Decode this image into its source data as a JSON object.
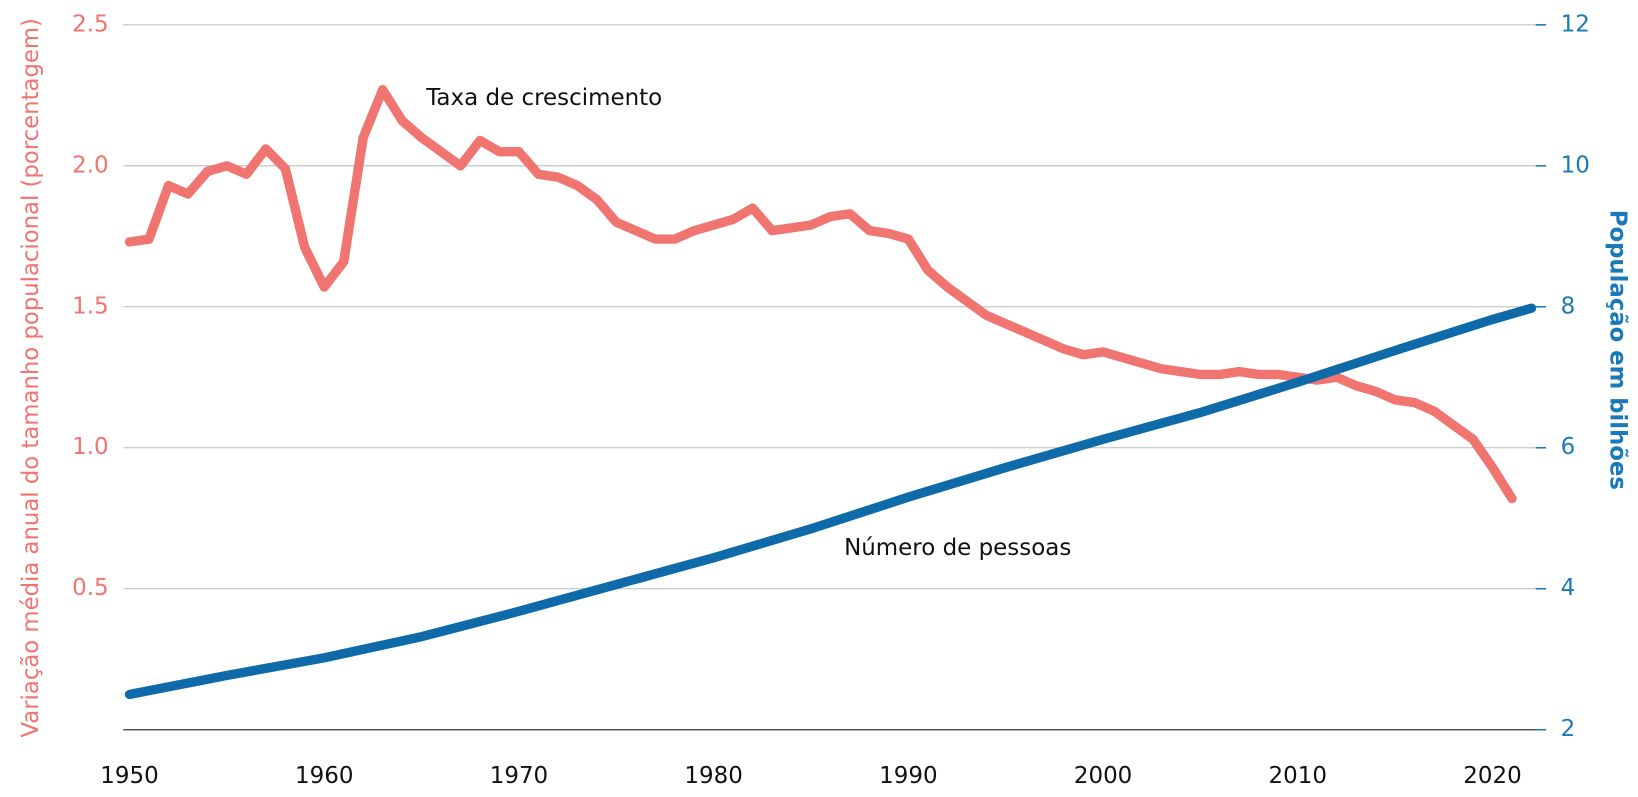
{
  "chart_data": {
    "type": "line",
    "annotations": [
      "Taxa de crescimento",
      "Número de pessoas"
    ],
    "ylabel": "Variação média anual do tamanho populacional (porcentagem)",
    "y2label": "População em bilhões",
    "xlim": [
      1950,
      2022
    ],
    "xticks": [
      1950,
      1960,
      1970,
      1980,
      1990,
      2000,
      2010,
      2020
    ],
    "ylim": [
      0,
      2.5
    ],
    "yticks": [
      0.5,
      {
        "value": 1,
        "label": "1.0"
      },
      1.5,
      {
        "value": 2,
        "label": "2.0"
      },
      2.5
    ],
    "y2lim": [
      2,
      12
    ],
    "y2ticks": [
      2,
      4,
      6,
      8,
      10,
      12
    ],
    "grid": true,
    "series": [
      {
        "color": "#f07470",
        "x": [
          1950,
          1951,
          1952,
          1953,
          1954,
          1955,
          1956,
          1957,
          1958,
          1959,
          1960,
          1961,
          1962,
          1963,
          1964,
          1965,
          1966,
          1967,
          1968,
          1969,
          1970,
          1971,
          1972,
          1973,
          1974,
          1975,
          1976,
          1977,
          1978,
          1979,
          1980,
          1981,
          1982,
          1983,
          1984,
          1985,
          1986,
          1987,
          1988,
          1989,
          1990,
          1991,
          1992,
          1993,
          1994,
          1995,
          1996,
          1997,
          1998,
          1999,
          2000,
          2001,
          2002,
          2003,
          2004,
          2005,
          2006,
          2007,
          2008,
          2009,
          2010,
          2011,
          2012,
          2013,
          2014,
          2015,
          2016,
          2017,
          2018,
          2019,
          2020,
          2021
        ],
        "values": [
          1.73,
          1.74,
          1.93,
          1.9,
          1.98,
          2.0,
          1.97,
          2.06,
          1.99,
          1.71,
          1.57,
          1.66,
          2.1,
          2.27,
          2.16,
          2.1,
          2.05,
          2.0,
          2.09,
          2.05,
          2.05,
          1.97,
          1.96,
          1.93,
          1.88,
          1.8,
          1.77,
          1.74,
          1.74,
          1.77,
          1.79,
          1.81,
          1.85,
          1.77,
          1.78,
          1.79,
          1.82,
          1.83,
          1.77,
          1.76,
          1.74,
          1.63,
          1.57,
          1.52,
          1.47,
          1.44,
          1.41,
          1.38,
          1.35,
          1.33,
          1.34,
          1.32,
          1.3,
          1.28,
          1.27,
          1.26,
          1.26,
          1.27,
          1.26,
          1.26,
          1.25,
          1.24,
          1.25,
          1.22,
          1.2,
          1.17,
          1.16,
          1.13,
          1.08,
          1.03,
          0.93,
          0.82
        ]
      },
      {
        "color": "#0e6aa8",
        "axis": "y2",
        "x": [
          1950,
          1955,
          1960,
          1965,
          1970,
          1975,
          1980,
          1985,
          1990,
          1995,
          2000,
          2005,
          2010,
          2015,
          2020,
          2022
        ],
        "values": [
          2.5,
          2.77,
          3.02,
          3.32,
          3.68,
          4.06,
          4.44,
          4.85,
          5.3,
          5.72,
          6.12,
          6.5,
          6.93,
          7.38,
          7.82,
          7.98
        ]
      }
    ]
  }
}
